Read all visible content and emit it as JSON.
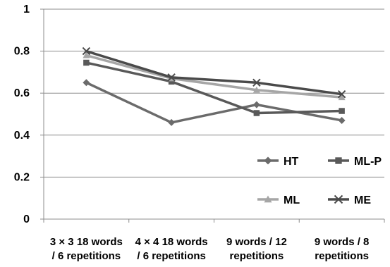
{
  "chart_data": {
    "type": "line",
    "categories": [
      [
        "3 × 3 18 words",
        "/ 6 repetitions"
      ],
      [
        "4 × 4 18 words",
        "/ 6 repetitions"
      ],
      [
        "9 words / 12",
        "repetitions"
      ],
      [
        "9 words / 8",
        "repetitions"
      ]
    ],
    "ylim": [
      0,
      1
    ],
    "yticks": [
      0,
      0.2,
      0.4,
      0.6,
      0.8,
      1
    ],
    "ytick_labels": [
      "0",
      "0.2",
      "0.4",
      "0.6",
      "0.8",
      "1"
    ],
    "grid": true,
    "legend_position": "bottom-right",
    "series": [
      {
        "name": "HT",
        "values": [
          0.65,
          0.46,
          0.545,
          0.47
        ],
        "color": "#6b6b6b",
        "marker": "diamond"
      },
      {
        "name": "ML-P",
        "values": [
          0.745,
          0.655,
          0.505,
          0.515
        ],
        "color": "#595959",
        "marker": "square"
      },
      {
        "name": "ML",
        "values": [
          0.78,
          0.67,
          0.615,
          0.58
        ],
        "color": "#a6a6a6",
        "marker": "triangle"
      },
      {
        "name": "ME",
        "values": [
          0.8,
          0.675,
          0.65,
          0.595
        ],
        "color": "#4a4a4a",
        "marker": "x"
      }
    ]
  }
}
